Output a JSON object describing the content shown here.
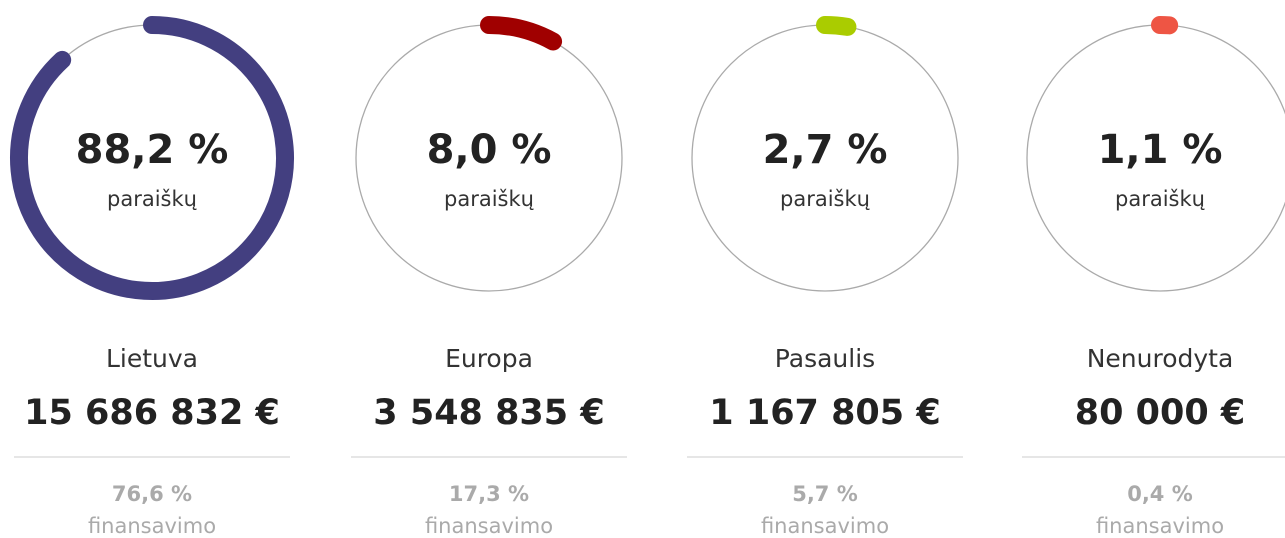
{
  "chart_data": [
    {
      "type": "radial",
      "value": 88.2,
      "value_label": "88,2 %",
      "caption": "paraiškų",
      "name": "Lietuva",
      "amount": "15 686 832 €",
      "funding": 76.6,
      "funding_label": "76,6 %",
      "funding_caption": "finansavimo",
      "color": "#433f80"
    },
    {
      "type": "radial",
      "value": 8.0,
      "value_label": "8,0 %",
      "caption": "paraiškų",
      "name": "Europa",
      "amount": "3 548 835 €",
      "funding": 17.3,
      "funding_label": "17,3 %",
      "funding_caption": "finansavimo",
      "color": "#a00000"
    },
    {
      "type": "radial",
      "value": 2.7,
      "value_label": "2,7 %",
      "caption": "paraiškų",
      "name": "Pasaulis",
      "amount": "1 167 805 €",
      "funding": 5.7,
      "funding_label": "5,7 %",
      "funding_caption": "finansavimo",
      "color": "#aacc00"
    },
    {
      "type": "radial",
      "value": 1.1,
      "value_label": "1,1 %",
      "caption": "paraiškų",
      "name": "Nenurodyta",
      "amount": "80 000 €",
      "funding": 0.4,
      "funding_label": "0,4 %",
      "funding_caption": "finansavimo",
      "color": "#ee5544"
    }
  ]
}
